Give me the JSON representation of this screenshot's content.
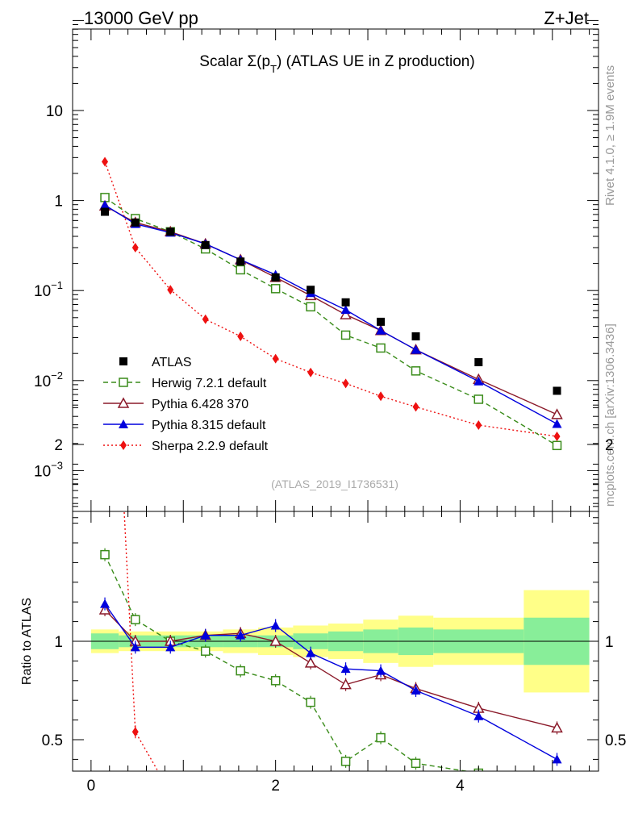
{
  "header": {
    "left": "13000 GeV pp",
    "right": "Z+Jet"
  },
  "side_texts": {
    "rivet": "Rivet 4.1.0, ≥ 1.9M events",
    "mcplots": "mcplots.cern.ch [arXiv:1306.3436]"
  },
  "colors": {
    "atlas": "#000000",
    "herwig": "#3a8c1a",
    "pythia6": "#8b1a2a",
    "pythia8": "#0000dd",
    "sherpa": "#ee1111",
    "band_inner": "#88ee99",
    "band_outer": "#ffff88"
  },
  "chart_data": [
    {
      "type": "line",
      "panel": "main",
      "title": "Scalar Σ(p_T) (ATLAS UE in Z production)",
      "title_main": "Scalar Σ(p",
      "title_sub": "T",
      "title_rest": ") (ATLAS UE in Z production)",
      "analysis_label": "(ATLAS_2019_I1736531)",
      "yscale": "log",
      "ylim": [
        0.0003,
        100
      ],
      "xlim": [
        -0.2,
        5.5
      ],
      "ytick_labels": [
        {
          "value": 10,
          "base": "10",
          "exp": ""
        },
        {
          "value": 1,
          "base": "1",
          "exp": ""
        },
        {
          "value": 0.1,
          "base": "10",
          "exp": "−1"
        },
        {
          "value": 0.01,
          "base": "10",
          "exp": "−2"
        },
        {
          "value": 0.001,
          "base": "10",
          "exp": "−3"
        }
      ],
      "legend_position": "lower-left",
      "series": [
        {
          "name": "ATLAS",
          "style": "data",
          "color": "#000000",
          "marker": "square",
          "x": [
            0.15,
            0.48,
            0.86,
            1.24,
            1.62,
            2.0,
            2.38,
            2.76,
            3.14,
            3.52,
            4.2,
            5.05
          ],
          "y": [
            0.75,
            0.57,
            0.45,
            0.32,
            0.21,
            0.14,
            0.102,
            0.074,
            0.045,
            0.031,
            0.016,
            0.0077
          ]
        },
        {
          "name": "Herwig 7.2.1 default",
          "style": "dashed",
          "color": "#3a8c1a",
          "marker": "open-square",
          "x": [
            0.15,
            0.48,
            0.86,
            1.24,
            1.62,
            2.0,
            2.38,
            2.76,
            3.14,
            3.52,
            4.2,
            5.05
          ],
          "y": [
            1.08,
            0.63,
            0.45,
            0.29,
            0.17,
            0.105,
            0.066,
            0.032,
            0.023,
            0.0128,
            0.0062,
            0.0019
          ]
        },
        {
          "name": "Pythia 6.428 370",
          "style": "solid",
          "color": "#8b1a2a",
          "marker": "open-triangle",
          "x": [
            0.15,
            0.48,
            0.86,
            1.24,
            1.62,
            2.0,
            2.38,
            2.76,
            3.14,
            3.52,
            4.2,
            5.05
          ],
          "y": [
            0.87,
            0.57,
            0.45,
            0.33,
            0.22,
            0.14,
            0.088,
            0.054,
            0.036,
            0.022,
            0.0103,
            0.0042
          ]
        },
        {
          "name": "Pythia 8.315 default",
          "style": "solid",
          "color": "#0000dd",
          "marker": "triangle",
          "x": [
            0.15,
            0.48,
            0.86,
            1.24,
            1.62,
            2.0,
            2.38,
            2.76,
            3.14,
            3.52,
            4.2,
            5.05
          ],
          "y": [
            0.89,
            0.55,
            0.44,
            0.33,
            0.22,
            0.15,
            0.094,
            0.061,
            0.036,
            0.022,
            0.0098,
            0.0033
          ]
        },
        {
          "name": "Sherpa 2.2.9 default",
          "style": "dotted",
          "color": "#ee1111",
          "marker": "diamond",
          "x": [
            0.15,
            0.48,
            0.86,
            1.24,
            1.62,
            2.0,
            2.38,
            2.76,
            3.14,
            3.52,
            4.2,
            5.05
          ],
          "y": [
            2.7,
            0.3,
            0.102,
            0.048,
            0.031,
            0.0175,
            0.0123,
            0.0093,
            0.0067,
            0.0051,
            0.0032,
            0.0024
          ]
        }
      ]
    },
    {
      "type": "line",
      "panel": "ratio",
      "ylabel": "Ratio to ATLAS",
      "ylim": [
        0.35,
        2.3
      ],
      "xlim": [
        -0.2,
        5.5
      ],
      "yticks": [
        0.5,
        1,
        2
      ],
      "ytick_labels": [
        "0.5",
        "1",
        "2"
      ],
      "xticks": [
        0,
        2,
        4
      ],
      "xtick_labels": [
        "0",
        "2",
        "4"
      ],
      "band_edges": [
        0,
        0.3,
        0.67,
        1.05,
        1.43,
        1.81,
        2.19,
        2.57,
        2.95,
        3.33,
        3.71,
        4.69,
        5.4
      ],
      "band_inner": [
        0.04,
        0.03,
        0.03,
        0.03,
        0.03,
        0.03,
        0.04,
        0.05,
        0.06,
        0.07,
        0.06,
        0.12
      ],
      "band_outer": [
        0.06,
        0.05,
        0.05,
        0.05,
        0.06,
        0.07,
        0.08,
        0.09,
        0.11,
        0.13,
        0.12,
        0.26
      ],
      "series": [
        {
          "name": "Herwig 7.2.1 default",
          "color": "#3a8c1a",
          "marker": "open-square",
          "style": "dashed",
          "x": [
            0.15,
            0.48,
            0.86,
            1.24,
            1.62,
            2.0,
            2.38,
            2.76,
            3.14,
            3.52,
            4.2
          ],
          "y": [
            1.44,
            1.11,
            1.0,
            0.95,
            0.85,
            0.8,
            0.69,
            0.39,
            0.51,
            0.38,
            0.33
          ]
        },
        {
          "name": "Pythia 6.428 370",
          "color": "#8b1a2a",
          "marker": "open-triangle",
          "style": "solid",
          "x": [
            0.15,
            0.48,
            0.86,
            1.24,
            1.62,
            2.0,
            2.38,
            2.76,
            3.14,
            3.52,
            4.2,
            5.05
          ],
          "y": [
            1.16,
            1.0,
            1.0,
            1.03,
            1.04,
            1.0,
            0.89,
            0.78,
            0.83,
            0.76,
            0.66,
            0.56
          ]
        },
        {
          "name": "Pythia 8.315 default",
          "color": "#0000dd",
          "marker": "triangle",
          "style": "solid",
          "x": [
            0.15,
            0.48,
            0.86,
            1.24,
            1.62,
            2.0,
            2.38,
            2.76,
            3.14,
            3.52,
            4.2,
            5.05
          ],
          "y": [
            1.19,
            0.97,
            0.97,
            1.03,
            1.03,
            1.08,
            0.94,
            0.86,
            0.85,
            0.75,
            0.62,
            0.4
          ]
        },
        {
          "name": "Sherpa 2.2.9 default",
          "color": "#ee1111",
          "marker": "diamond",
          "style": "dotted",
          "x": [
            0.15,
            0.48,
            0.86
          ],
          "y": [
            3.6,
            0.54,
            0.23
          ]
        }
      ]
    }
  ]
}
